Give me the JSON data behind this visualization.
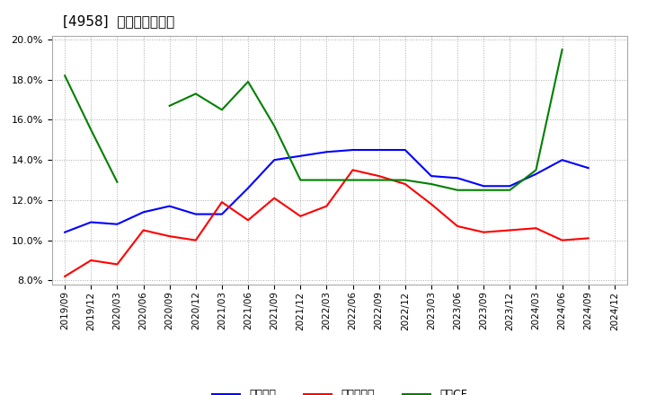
{
  "title": "[4958]  マージンの推移",
  "x_labels": [
    "2019/09",
    "2019/12",
    "2020/03",
    "2020/06",
    "2020/09",
    "2020/12",
    "2021/03",
    "2021/06",
    "2021/09",
    "2021/12",
    "2022/03",
    "2022/06",
    "2022/09",
    "2022/12",
    "2023/03",
    "2023/06",
    "2023/09",
    "2023/12",
    "2024/03",
    "2024/06",
    "2024/09",
    "2024/12"
  ],
  "keijo_rieki": [
    10.4,
    10.9,
    10.8,
    11.4,
    11.7,
    11.3,
    11.3,
    12.6,
    14.0,
    14.2,
    14.4,
    14.5,
    14.5,
    14.5,
    13.2,
    13.1,
    12.7,
    12.7,
    13.3,
    14.0,
    13.6,
    null
  ],
  "touki_junrieki": [
    8.2,
    9.0,
    8.8,
    10.5,
    10.2,
    10.0,
    11.9,
    11.0,
    12.1,
    11.2,
    11.7,
    13.5,
    13.2,
    12.8,
    11.8,
    10.7,
    10.4,
    10.5,
    10.6,
    10.0,
    10.1,
    null
  ],
  "eigyo_cf": [
    18.2,
    15.5,
    12.9,
    null,
    16.7,
    17.3,
    16.5,
    17.9,
    15.7,
    13.0,
    13.0,
    13.0,
    13.0,
    13.0,
    12.8,
    12.5,
    12.5,
    12.5,
    13.5,
    19.5,
    null,
    null
  ],
  "keijo_color": "#0000ff",
  "touki_color": "#ff0000",
  "eigyo_color": "#008000",
  "ylim": [
    0.078,
    0.202
  ],
  "yticks": [
    0.08,
    0.1,
    0.12,
    0.14,
    0.16,
    0.18,
    0.2
  ],
  "background_color": "#ffffff",
  "grid_color": "#aaaaaa",
  "legend_labels": [
    "経常利益",
    "当期純利益",
    "営業CF"
  ]
}
